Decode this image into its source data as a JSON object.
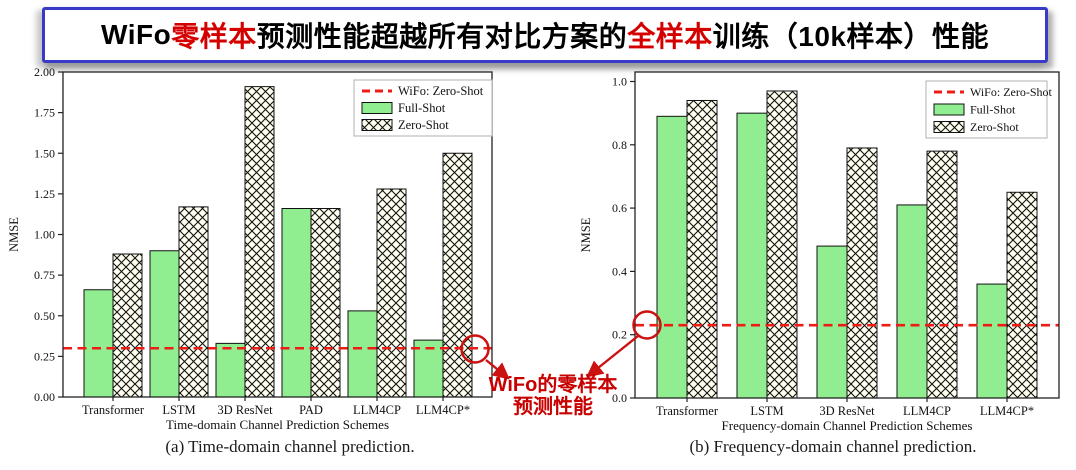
{
  "title": {
    "segments": [
      {
        "text": "WiFo",
        "color": "#000000"
      },
      {
        "text": "零样本",
        "color": "#d40000"
      },
      {
        "text": "预测性能超越所有对比方案的",
        "color": "#000000"
      },
      {
        "text": "全样本",
        "color": "#d40000"
      },
      {
        "text": "训练（10k样本）性能",
        "color": "#000000"
      }
    ]
  },
  "chart_data": [
    {
      "type": "bar",
      "caption": "(a) Time-domain channel prediction.",
      "xlabel": "Time-domain Channel Prediction Schemes",
      "ylabel": "NMSE",
      "categories": [
        "Transformer",
        "LSTM",
        "3D ResNet",
        "PAD",
        "LLM4CP",
        "LLM4CP*"
      ],
      "series": [
        {
          "name": "Full-Shot",
          "values": [
            0.66,
            0.9,
            0.33,
            1.16,
            0.53,
            0.35
          ]
        },
        {
          "name": "Zero-Shot",
          "values": [
            0.88,
            1.17,
            1.91,
            1.16,
            1.28,
            1.5
          ]
        }
      ],
      "baseline": {
        "name": "WiFo: Zero-Shot",
        "value": 0.3
      },
      "ylim": [
        0,
        2.0
      ],
      "ytick_values": [
        0,
        0.25,
        0.5,
        0.75,
        1.0,
        1.25,
        1.5,
        1.75,
        2.0
      ],
      "ytick_labels": [
        "0.00",
        "0.25",
        "0.50",
        "0.75",
        "1.00",
        "1.25",
        "1.50",
        "1.75",
        "2.00"
      ],
      "legend": [
        "WiFo: Zero-Shot",
        "Full-Shot",
        "Zero-Shot"
      ],
      "legend_position": "upper right",
      "grid": false
    },
    {
      "type": "bar",
      "caption": "(b) Frequency-domain channel prediction.",
      "xlabel": "Frequency-domain Channel Prediction Schemes",
      "ylabel": "NMSE",
      "categories": [
        "Transformer",
        "LSTM",
        "3D ResNet",
        "LLM4CP",
        "LLM4CP*"
      ],
      "series": [
        {
          "name": "Full-Shot",
          "values": [
            0.89,
            0.9,
            0.48,
            0.61,
            0.36
          ]
        },
        {
          "name": "Zero-Shot",
          "values": [
            0.94,
            0.97,
            0.79,
            0.78,
            0.65
          ]
        }
      ],
      "baseline": {
        "name": "WiFo: Zero-Shot",
        "value": 0.23
      },
      "ylim": [
        0,
        1.0
      ],
      "ytick_values": [
        0,
        0.2,
        0.4,
        0.6,
        0.8,
        1.0
      ],
      "ytick_labels": [
        "0.0",
        "0.2",
        "0.4",
        "0.6",
        "0.8",
        "1.0"
      ],
      "legend": [
        "WiFo: Zero-Shot",
        "Full-Shot",
        "Zero-Shot"
      ],
      "legend_position": "upper right",
      "grid": false
    }
  ],
  "annotation": {
    "line1": "WiFo的零样本",
    "line2": "预测性能"
  },
  "colors": {
    "full_shot": "#90ee90",
    "zero_shot_face": "#fffff0",
    "hatch": "#111111",
    "bar_edge": "#111111",
    "baseline_red": "#ed1c16",
    "annotation_red": "#cc1111",
    "title_border": "#3a3ac8",
    "frame": "#222222",
    "legend_border": "#b0b0b0"
  }
}
